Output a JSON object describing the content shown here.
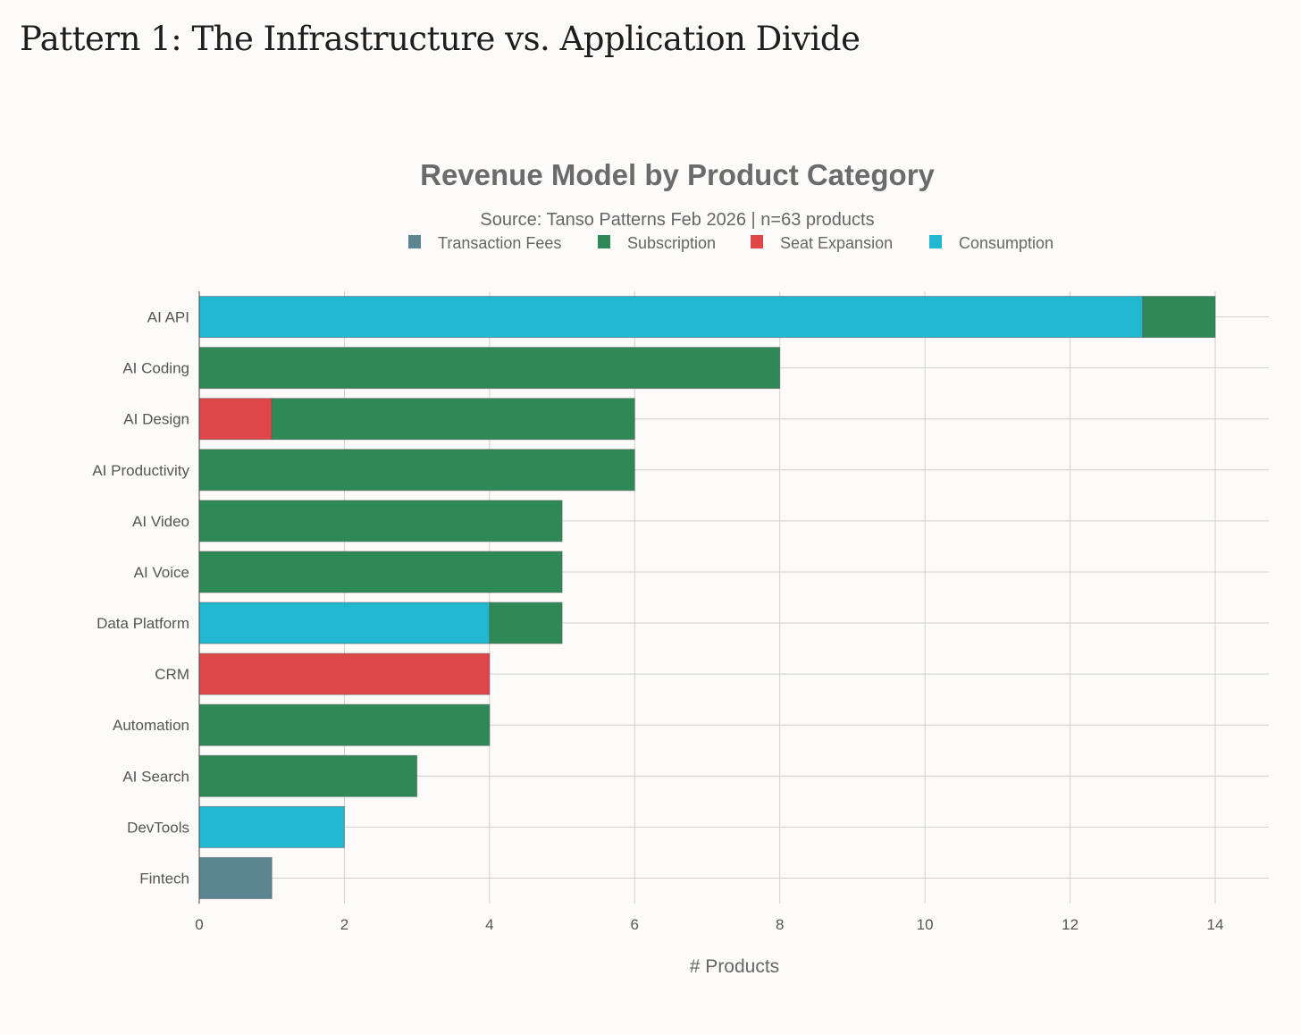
{
  "page_title": "Pattern 1: The Infrastructure vs. Application Divide",
  "chart_data": {
    "type": "bar",
    "orientation": "horizontal",
    "stacked": true,
    "title": "Revenue Model by Product Category",
    "subtitle": "Source: Tanso Patterns Feb 2026 | n=63 products",
    "xlabel": "# Products",
    "ylabel": "",
    "xlim": [
      0,
      14.7
    ],
    "xticks": [
      0,
      2,
      4,
      6,
      8,
      10,
      12,
      14
    ],
    "grid": true,
    "legend_position": "top-center",
    "categories": [
      "AI API",
      "AI Coding",
      "AI Design",
      "AI Productivity",
      "AI Video",
      "AI Voice",
      "Data Platform",
      "CRM",
      "Automation",
      "AI Search",
      "DevTools",
      "Fintech"
    ],
    "series": [
      {
        "name": "Transaction Fees",
        "color": "#5b8590",
        "values": [
          0,
          0,
          0,
          0,
          0,
          0,
          0,
          0,
          0,
          0,
          0,
          1
        ]
      },
      {
        "name": "Seat Expansion",
        "color": "#de4647",
        "values": [
          0,
          0,
          1,
          0,
          0,
          0,
          0,
          4,
          0,
          0,
          0,
          0
        ]
      },
      {
        "name": "Consumption",
        "color": "#21b8cf",
        "values": [
          13,
          0,
          0,
          0,
          0,
          0,
          4,
          0,
          0,
          0,
          2,
          0
        ]
      },
      {
        "name": "Subscription",
        "color": "#2e8957",
        "values": [
          1,
          8,
          5,
          6,
          5,
          5,
          1,
          0,
          4,
          3,
          0,
          0
        ]
      }
    ],
    "legend_order": [
      "Transaction Fees",
      "Subscription",
      "Seat Expansion",
      "Consumption"
    ]
  }
}
